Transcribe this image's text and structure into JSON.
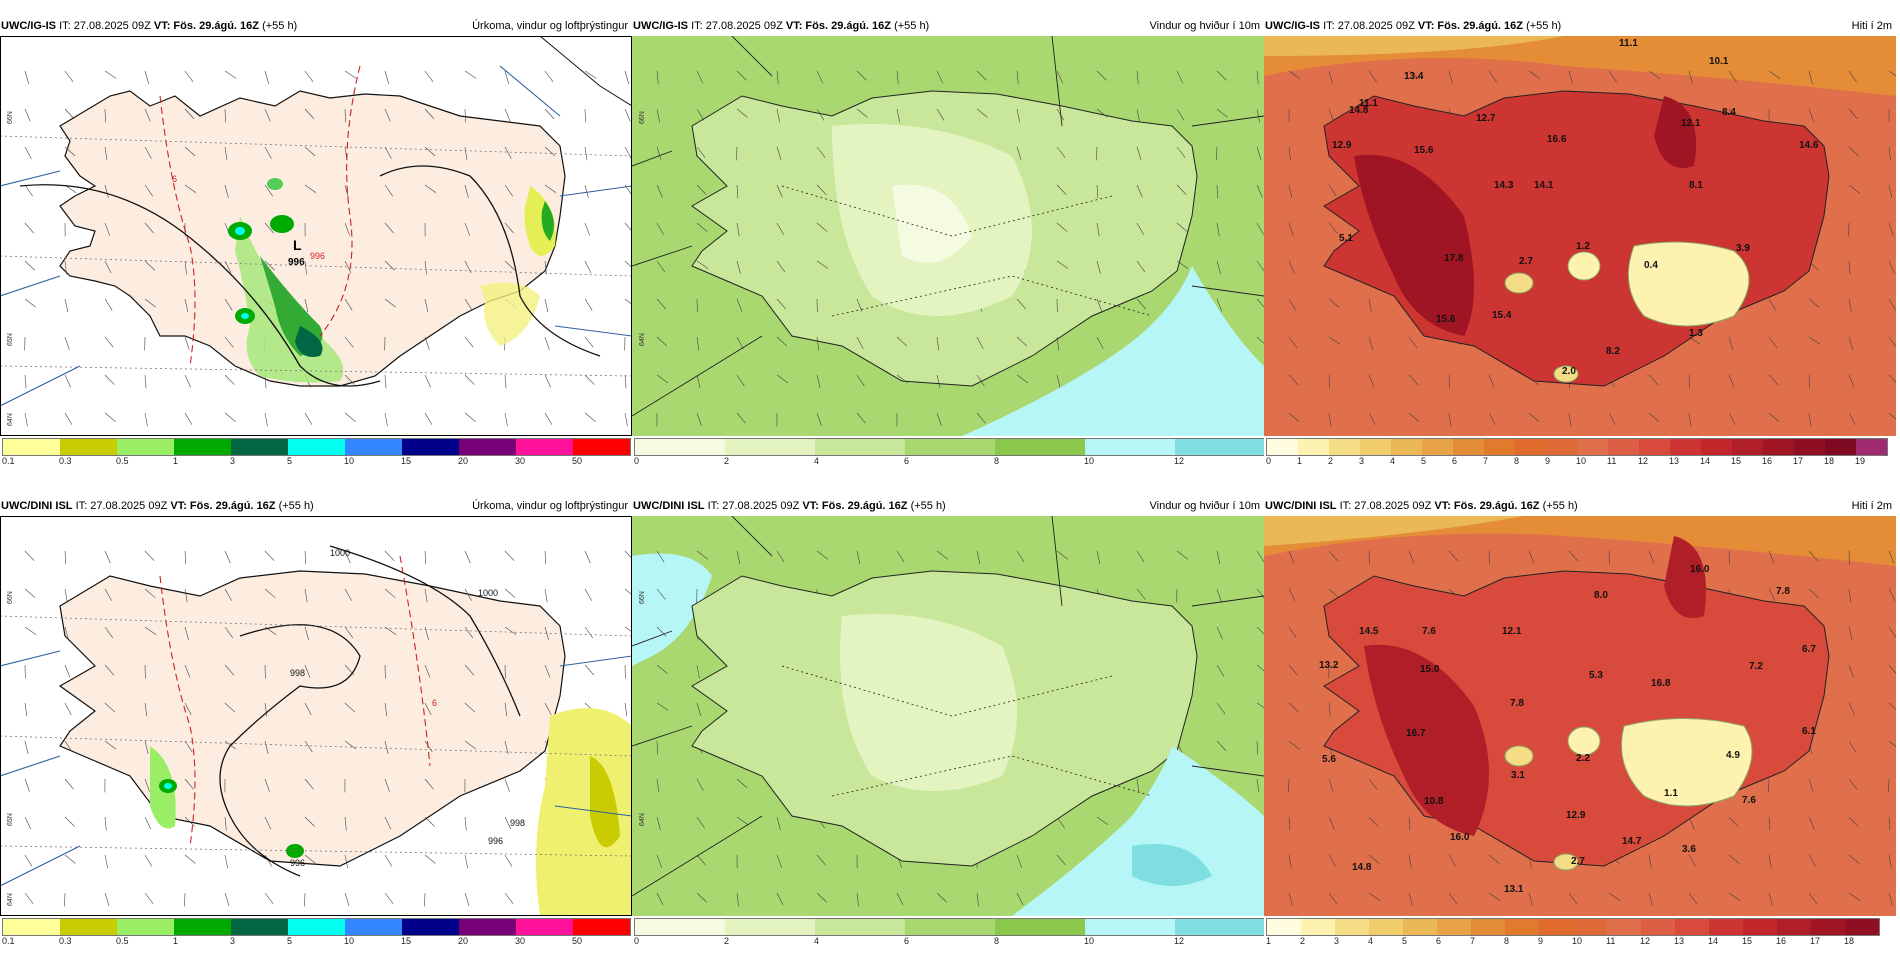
{
  "panels": {
    "ig_precip": {
      "model": "UWC/IG-IS",
      "it_label": "IT: 27.08.2025 09Z",
      "vt_label": "VT: Fös. 29.ágú. 16Z",
      "lead": "(+55 h)",
      "title": "Úrkoma, vindur og loftþrýstingur",
      "low_label": "L",
      "low_value": "996",
      "isobars": [
        "996",
        "6"
      ],
      "lat_labels": [
        "66N",
        "65N",
        "64N"
      ],
      "legend": [
        "0.1",
        "0.3",
        "0.5",
        "1",
        "3",
        "5",
        "10",
        "15",
        "20",
        "30",
        "50"
      ]
    },
    "ig_wind": {
      "model": "UWC/IG-IS",
      "it_label": "IT: 27.08.2025 09Z",
      "vt_label": "VT: Fös. 29.ágú. 16Z",
      "lead": "(+55 h)",
      "title": "Vindur og hviður í 10m",
      "lat_labels": [
        "66N",
        "64N"
      ],
      "legend": [
        "0",
        "2",
        "4",
        "6",
        "8",
        "10",
        "12"
      ]
    },
    "ig_temp": {
      "model": "UWC/IG-IS",
      "it_label": "IT: 27.08.2025 09Z",
      "vt_label": "VT: Fös. 29.ágú. 16Z",
      "lead": "(+55 h)",
      "title": "Hiti í 2m",
      "values": [
        "11.1",
        "13.4",
        "10.1",
        "14.8",
        "11.1",
        "12.7",
        "12.1",
        "8.4",
        "12.9",
        "15.6",
        "16.6",
        "14.6",
        "14.3",
        "14.1",
        "8.1",
        "5.1",
        "1.2",
        "3.9",
        "17.8",
        "2.7",
        "0.4",
        "15.6",
        "15.4",
        "8.2",
        "1.3",
        "2.0"
      ],
      "legend": [
        "0",
        "1",
        "2",
        "3",
        "4",
        "5",
        "6",
        "7",
        "8",
        "9",
        "10",
        "11",
        "12",
        "13",
        "14",
        "15",
        "16",
        "17",
        "18",
        "19"
      ]
    },
    "dini_precip": {
      "model": "UWC/DINI ISL",
      "it_label": "IT: 27.08.2025 09Z",
      "vt_label": "VT: Fös. 29.ágú. 16Z",
      "lead": "(+55 h)",
      "title": "Úrkoma, vindur og loftþrýstingur",
      "isobars": [
        "1000",
        "1000",
        "998",
        "996",
        "6",
        "996",
        "998"
      ],
      "lat_labels": [
        "66N",
        "65N",
        "64N"
      ],
      "legend": [
        "0.1",
        "0.3",
        "0.5",
        "1",
        "3",
        "5",
        "10",
        "15",
        "20",
        "30",
        "50"
      ]
    },
    "dini_wind": {
      "model": "UWC/DINI ISL",
      "it_label": "IT: 27.08.2025 09Z",
      "vt_label": "VT: Fös. 29.ágú. 16Z",
      "lead": "(+55 h)",
      "title": "Vindur og hviður í 10m",
      "lat_labels": [
        "66N",
        "64N"
      ],
      "legend": [
        "0",
        "2",
        "4",
        "6",
        "8",
        "10",
        "12"
      ]
    },
    "dini_temp": {
      "model": "UWC/DINI ISL",
      "it_label": "IT: 27.08.2025 09Z",
      "vt_label": "VT: Fös. 29.ágú. 16Z",
      "lead": "(+55 h)",
      "title": "Hiti í 2m",
      "values": [
        "16.0",
        "7.8",
        "8.0",
        "14.5",
        "7.6",
        "12.1",
        "13.2",
        "15.0",
        "5.3",
        "7.2",
        "6.7",
        "16.8",
        "7.8",
        "16.7",
        "6.1",
        "5.6",
        "2.2",
        "3.1",
        "4.9",
        "10.8",
        "1.1",
        "7.6",
        "12.9",
        "16.0",
        "14.7",
        "3.6",
        "14.8",
        "2.7",
        "13.1"
      ],
      "legend": [
        "1",
        "2",
        "3",
        "4",
        "5",
        "6",
        "7",
        "8",
        "9",
        "10",
        "11",
        "12",
        "13",
        "14",
        "15",
        "16",
        "17",
        "18"
      ]
    }
  },
  "colors": {
    "precip_scale": [
      "#ffff99",
      "#c8cc00",
      "#99ee66",
      "#00aa00",
      "#006644",
      "#00ffee",
      "#3388ff",
      "#000088",
      "#770077",
      "#ff1199",
      "#ff0000"
    ],
    "wind_scale": [
      "#f5fbe0",
      "#e4f4c0",
      "#c8e79a",
      "#a9d870",
      "#8bc84c",
      "#b7f6f7",
      "#7fdedf"
    ],
    "temp_scale": [
      "#fffce0",
      "#fdf2b0",
      "#f5dd86",
      "#f0cd6a",
      "#eab955",
      "#e8a247",
      "#e58c37",
      "#e07a2c",
      "#e06b2c",
      "#de6b35",
      "#e06f4c",
      "#dd5e45",
      "#d84b3c",
      "#cc3532",
      "#c1272a",
      "#b01e27",
      "#a01524",
      "#8f0e22",
      "#7d0a20",
      "#a02a70"
    ],
    "land_fill": "#fcede0",
    "isobar_red": "#cc2222"
  }
}
